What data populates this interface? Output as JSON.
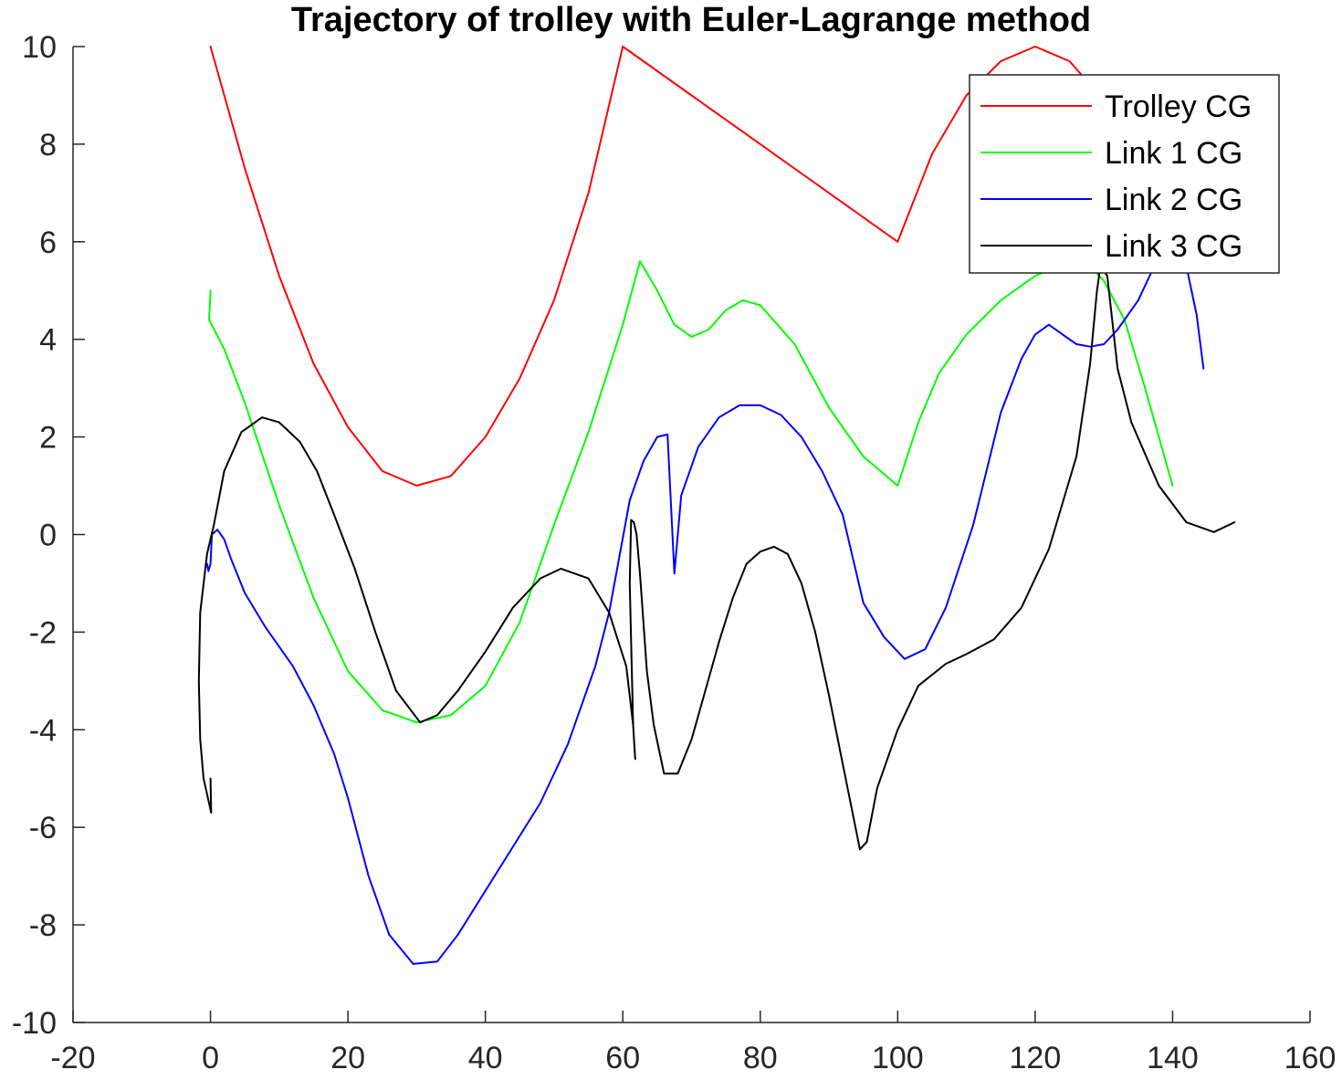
{
  "chart_data": {
    "type": "line",
    "title": "Trajectory of trolley with Euler-Lagrange method",
    "xlabel": "",
    "ylabel": "",
    "xlim": [
      -20,
      160
    ],
    "ylim": [
      -10,
      10
    ],
    "xticks": [
      "-20",
      "0",
      "20",
      "40",
      "60",
      "80",
      "100",
      "120",
      "140",
      "160"
    ],
    "yticks": [
      "-10",
      "-8",
      "-6",
      "-4",
      "-2",
      "0",
      "2",
      "4",
      "6",
      "8",
      "10"
    ],
    "grid": false,
    "legend_position": "top-right",
    "series": [
      {
        "name": "Trolley CG",
        "color": "#ff0000",
        "points": [
          [
            0,
            10
          ],
          [
            5,
            7.5
          ],
          [
            10,
            5.3
          ],
          [
            15,
            3.5
          ],
          [
            20,
            2.2
          ],
          [
            25,
            1.3
          ],
          [
            30,
            1.0
          ],
          [
            35,
            1.2
          ],
          [
            40,
            2.0
          ],
          [
            45,
            3.2
          ],
          [
            50,
            4.8
          ],
          [
            55,
            7.0
          ],
          [
            60,
            10
          ],
          [
            70,
            9.0
          ],
          [
            80,
            8.0
          ],
          [
            90,
            7.0
          ],
          [
            100,
            6
          ],
          [
            105,
            7.8
          ],
          [
            110,
            9.0
          ],
          [
            115,
            9.7
          ],
          [
            120,
            10
          ],
          [
            125,
            9.7
          ],
          [
            130,
            8.9
          ]
        ]
      },
      {
        "name": "Link 1 CG",
        "color": "#00ff00",
        "points": [
          [
            0,
            5.0
          ],
          [
            -0.2,
            4.4
          ],
          [
            2,
            3.8
          ],
          [
            5,
            2.7
          ],
          [
            10,
            0.6
          ],
          [
            15,
            -1.3
          ],
          [
            20,
            -2.8
          ],
          [
            25,
            -3.6
          ],
          [
            30,
            -3.85
          ],
          [
            35,
            -3.7
          ],
          [
            40,
            -3.1
          ],
          [
            45,
            -1.8
          ],
          [
            50,
            0.2
          ],
          [
            55,
            2.1
          ],
          [
            60,
            4.3
          ],
          [
            62.5,
            5.6
          ],
          [
            65,
            5.0
          ],
          [
            67.5,
            4.3
          ],
          [
            70,
            4.05
          ],
          [
            72.5,
            4.2
          ],
          [
            75,
            4.6
          ],
          [
            77.5,
            4.8
          ],
          [
            80,
            4.7
          ],
          [
            85,
            3.9
          ],
          [
            90,
            2.6
          ],
          [
            95,
            1.6
          ],
          [
            100,
            1.0
          ],
          [
            103,
            2.3
          ],
          [
            106,
            3.3
          ],
          [
            110,
            4.1
          ],
          [
            115,
            4.8
          ],
          [
            120,
            5.3
          ],
          [
            125,
            5.6
          ],
          [
            128,
            5.5
          ],
          [
            130,
            5.2
          ],
          [
            133,
            4.4
          ],
          [
            136,
            3.0
          ],
          [
            138,
            2.0
          ],
          [
            140,
            1.0
          ]
        ]
      },
      {
        "name": "Link 2 CG",
        "color": "#0000ff",
        "points": [
          [
            -0.5,
            -0.6
          ],
          [
            -0.3,
            -0.75
          ],
          [
            0,
            -0.6
          ],
          [
            0.2,
            0.0
          ],
          [
            1,
            0.1
          ],
          [
            2,
            -0.1
          ],
          [
            3,
            -0.5
          ],
          [
            5,
            -1.2
          ],
          [
            8,
            -1.9
          ],
          [
            12,
            -2.7
          ],
          [
            15,
            -3.5
          ],
          [
            18,
            -4.5
          ],
          [
            20,
            -5.4
          ],
          [
            23,
            -7.0
          ],
          [
            26,
            -8.2
          ],
          [
            29.5,
            -8.8
          ],
          [
            33,
            -8.75
          ],
          [
            36,
            -8.2
          ],
          [
            40,
            -7.3
          ],
          [
            44,
            -6.4
          ],
          [
            48,
            -5.5
          ],
          [
            52,
            -4.3
          ],
          [
            56,
            -2.7
          ],
          [
            58,
            -1.6
          ],
          [
            61,
            0.7
          ],
          [
            63,
            1.5
          ],
          [
            65,
            2.0
          ],
          [
            66.5,
            2.05
          ],
          [
            67.5,
            -0.8
          ],
          [
            68.5,
            0.8
          ],
          [
            71,
            1.8
          ],
          [
            74,
            2.4
          ],
          [
            77,
            2.65
          ],
          [
            80,
            2.65
          ],
          [
            83,
            2.45
          ],
          [
            86,
            2.0
          ],
          [
            89,
            1.3
          ],
          [
            92,
            0.4
          ],
          [
            95,
            -1.4
          ],
          [
            98,
            -2.1
          ],
          [
            101,
            -2.55
          ],
          [
            104,
            -2.35
          ],
          [
            107,
            -1.5
          ],
          [
            111,
            0.2
          ],
          [
            115,
            2.5
          ],
          [
            118,
            3.6
          ],
          [
            120,
            4.1
          ],
          [
            122,
            4.3
          ],
          [
            124,
            4.1
          ],
          [
            126,
            3.9
          ],
          [
            128,
            3.85
          ],
          [
            130,
            3.9
          ],
          [
            132,
            4.2
          ],
          [
            135,
            4.8
          ],
          [
            138,
            5.7
          ],
          [
            140,
            5.9
          ],
          [
            142,
            5.5
          ],
          [
            143.5,
            4.5
          ],
          [
            144.5,
            3.4
          ]
        ]
      },
      {
        "name": "Link 3 CG",
        "color": "#000000",
        "points": [
          [
            0,
            -5.0
          ],
          [
            0.1,
            -5.7
          ],
          [
            -1,
            -5.0
          ],
          [
            -1.5,
            -4.2
          ],
          [
            -1.7,
            -3.0
          ],
          [
            -1.5,
            -1.6
          ],
          [
            -0.5,
            -0.4
          ],
          [
            0.5,
            0.2
          ],
          [
            2,
            1.3
          ],
          [
            4.5,
            2.1
          ],
          [
            7.5,
            2.4
          ],
          [
            10,
            2.3
          ],
          [
            13,
            1.9
          ],
          [
            15.5,
            1.3
          ],
          [
            18,
            0.4
          ],
          [
            21,
            -0.7
          ],
          [
            24,
            -2.0
          ],
          [
            27,
            -3.2
          ],
          [
            30.5,
            -3.85
          ],
          [
            33,
            -3.7
          ],
          [
            36,
            -3.2
          ],
          [
            40,
            -2.4
          ],
          [
            44,
            -1.5
          ],
          [
            48,
            -0.9
          ],
          [
            51,
            -0.7
          ],
          [
            55,
            -0.9
          ],
          [
            58,
            -1.6
          ],
          [
            60.5,
            -2.7
          ],
          [
            61.5,
            -3.9
          ],
          [
            61.8,
            -4.6
          ],
          [
            61.5,
            -3.9
          ],
          [
            61,
            -1.0
          ],
          [
            61.2,
            0.3
          ],
          [
            61.6,
            0.25
          ],
          [
            62,
            0.0
          ],
          [
            62.5,
            -0.8
          ],
          [
            63.5,
            -2.8
          ],
          [
            64.5,
            -3.9
          ],
          [
            66,
            -4.9
          ],
          [
            68,
            -4.9
          ],
          [
            70,
            -4.2
          ],
          [
            72,
            -3.2
          ],
          [
            74,
            -2.2
          ],
          [
            76,
            -1.3
          ],
          [
            78,
            -0.6
          ],
          [
            80,
            -0.35
          ],
          [
            82,
            -0.25
          ],
          [
            84,
            -0.4
          ],
          [
            86,
            -1.0
          ],
          [
            88,
            -2.0
          ],
          [
            90,
            -3.3
          ],
          [
            92,
            -4.7
          ],
          [
            94.5,
            -6.45
          ],
          [
            95.5,
            -6.3
          ],
          [
            97,
            -5.2
          ],
          [
            100,
            -4.0
          ],
          [
            103,
            -3.1
          ],
          [
            107,
            -2.65
          ],
          [
            110,
            -2.45
          ],
          [
            114,
            -2.15
          ],
          [
            118,
            -1.5
          ],
          [
            122,
            -0.3
          ],
          [
            126,
            1.6
          ],
          [
            128,
            3.5
          ],
          [
            129,
            5.0
          ],
          [
            129.5,
            5.5
          ],
          [
            130.5,
            5.3
          ],
          [
            132,
            3.4
          ],
          [
            134,
            2.3
          ],
          [
            138,
            1.0
          ],
          [
            142,
            0.25
          ],
          [
            146,
            0.05
          ],
          [
            149,
            0.25
          ]
        ]
      }
    ]
  }
}
